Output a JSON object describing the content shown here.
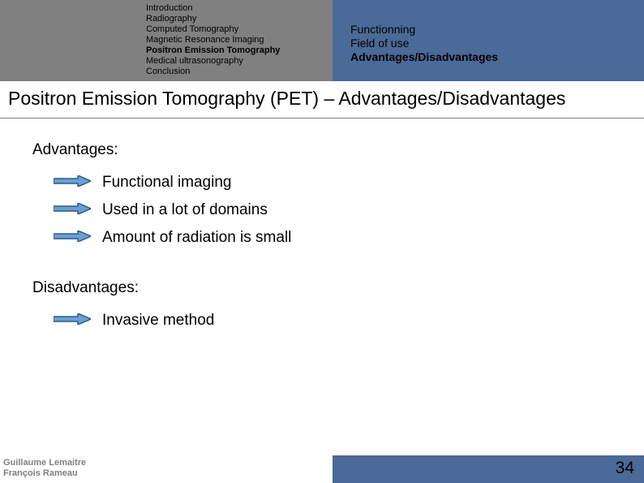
{
  "nav_left": {
    "items": [
      {
        "label": "Introduction",
        "bold": false
      },
      {
        "label": "Radiography",
        "bold": false
      },
      {
        "label": "Computed Tomography",
        "bold": false
      },
      {
        "label": "Magnetic Resonance Imaging",
        "bold": false
      },
      {
        "label": "Positron Emission Tomography",
        "bold": true
      },
      {
        "label": "Medical ultrasonography",
        "bold": false
      },
      {
        "label": "Conclusion",
        "bold": false
      }
    ]
  },
  "nav_right": {
    "items": [
      {
        "label": "Functionning",
        "bold": false
      },
      {
        "label": "Field of use",
        "bold": false
      },
      {
        "label": "Advantages/Disadvantages",
        "bold": true
      }
    ]
  },
  "title": "Positron Emission Tomography (PET) – Advantages/Disadvantages",
  "advantages": {
    "heading": "Advantages:",
    "items": [
      "Functional imaging",
      "Used in a lot of domains",
      "Amount of radiation is small"
    ]
  },
  "disadvantages": {
    "heading": "Disadvantages:",
    "items": [
      "Invasive method"
    ]
  },
  "authors": [
    "Guillaume Lemaitre",
    "François Rameau"
  ],
  "page_number": "34",
  "arrow": {
    "stroke": "#2a5a8a",
    "fill": "#6aa0d0",
    "width": 46,
    "height": 14
  },
  "colors": {
    "header_left_bg": "#808080",
    "header_right_bg": "#4a6a97",
    "footer_right_bg": "#4a6a97",
    "author_text": "#808080"
  }
}
